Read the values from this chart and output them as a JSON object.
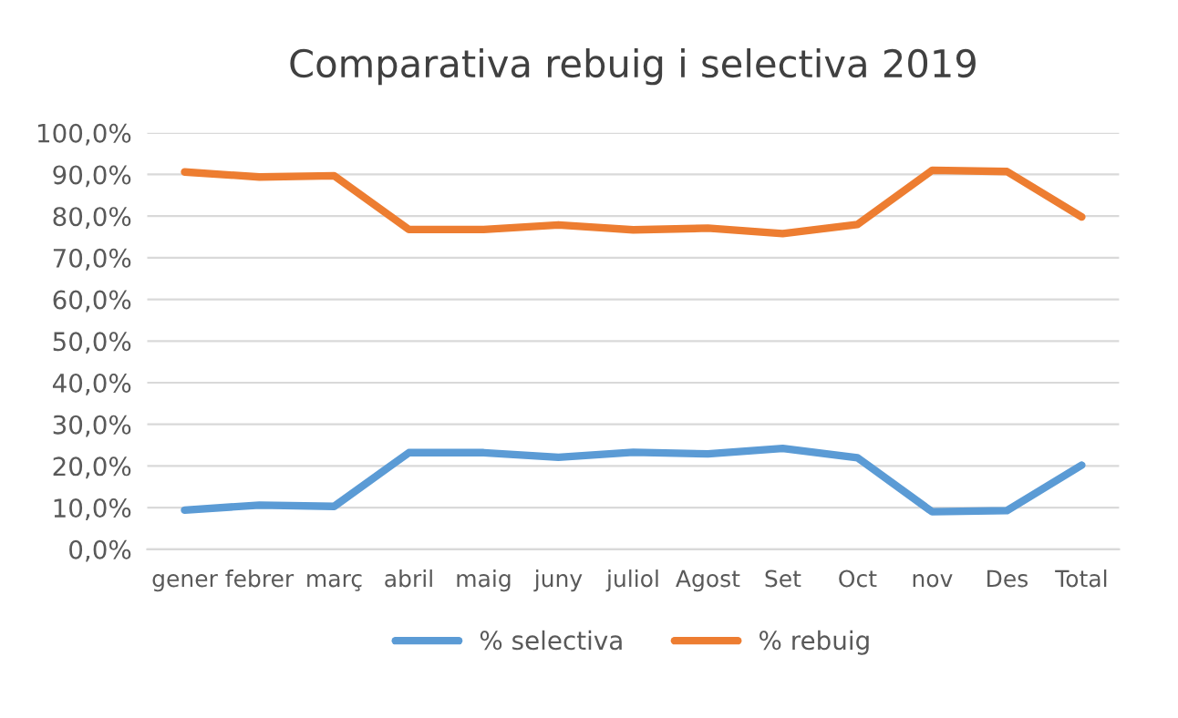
{
  "chart_data": {
    "type": "line",
    "title": "Comparativa rebuig i selectiva 2019",
    "categories": [
      "gener",
      "febrer",
      "març",
      "abril",
      "maig",
      "juny",
      "juliol",
      "Agost",
      "Set",
      "Oct",
      "nov",
      "Des",
      "Total"
    ],
    "series": [
      {
        "name": "% selectiva",
        "color": "#5b9bd5",
        "values": [
          9.4,
          10.6,
          10.3,
          23.2,
          23.2,
          22.1,
          23.3,
          22.9,
          24.2,
          22.0,
          9.0,
          9.3,
          20.2
        ]
      },
      {
        "name": "% rebuig",
        "color": "#ed7d31",
        "values": [
          90.6,
          89.4,
          89.7,
          76.8,
          76.8,
          77.9,
          76.7,
          77.1,
          75.8,
          78.0,
          91.0,
          90.7,
          79.8
        ]
      }
    ],
    "ylim": [
      0,
      100
    ],
    "yticks": [
      {
        "value": 0,
        "label": "0,0%"
      },
      {
        "value": 10,
        "label": "10,0%"
      },
      {
        "value": 20,
        "label": "20,0%"
      },
      {
        "value": 30,
        "label": "30,0%"
      },
      {
        "value": 40,
        "label": "40,0%"
      },
      {
        "value": 50,
        "label": "50,0%"
      },
      {
        "value": 60,
        "label": "60,0%"
      },
      {
        "value": 70,
        "label": "70,0%"
      },
      {
        "value": 80,
        "label": "80,0%"
      },
      {
        "value": 90,
        "label": "90,0%"
      },
      {
        "value": 100,
        "label": "100,0%"
      }
    ],
    "grid": "y",
    "legend": "bottom",
    "marker": "none",
    "line_style": "solid"
  }
}
